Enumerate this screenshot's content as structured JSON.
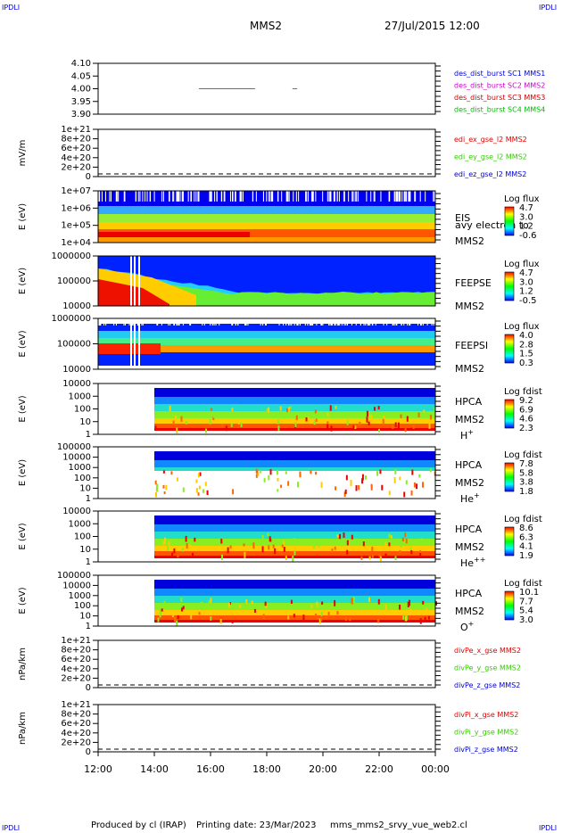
{
  "corner_labels": {
    "top_left": "IPDLI",
    "top_right": "IPDLI",
    "bottom_left": "IPDLI",
    "bottom_right": "IPDLI"
  },
  "header": {
    "spacecraft": "MMS2",
    "datetime": "27/Jul/2015 12:00"
  },
  "footer": {
    "produced_by": "Produced by cl (IRAP)",
    "printing_date": "Printing date: 23/Mar/2023",
    "file": "mms_mms2_srvy_vue_web2.cl"
  },
  "colors": {
    "c1": "#0000cc",
    "c2": "#cc00cc",
    "c3": "#cc0000",
    "c4": "#00bb00",
    "x": "#dd0000",
    "y": "#33cc00",
    "z": "#0000cc"
  },
  "chart_data": {
    "type": "heatmap",
    "x_axis": {
      "ticks": [
        "12:00",
        "14:00",
        "16:00",
        "18:00",
        "20:00",
        "22:00",
        "00:00"
      ]
    },
    "panels": [
      {
        "id": "p1",
        "type": "line",
        "yticks": [
          "4.10",
          "4.05",
          "4.00",
          "3.95",
          "3.90"
        ],
        "ylim": [
          3.9,
          4.1
        ],
        "legend": [
          {
            "text": "des_dist_burst SC1 MMS1",
            "color": "#0000cc"
          },
          {
            "text": "des_dist_burst SC2 MMS2",
            "color": "#cc00cc"
          },
          {
            "text": "des_dist_burst SC3 MMS3",
            "color": "#cc0000"
          },
          {
            "text": "des_dist_burst SC4 MMS4",
            "color": "#00bb00"
          }
        ],
        "segments": [
          {
            "from": "15:35",
            "to": "17:35",
            "y": 4.0,
            "series": 4
          },
          {
            "from": "18:55",
            "to": "19:05",
            "y": 4.0,
            "series": 4
          }
        ]
      },
      {
        "id": "p2",
        "type": "line",
        "ylabel": "mV/m",
        "yticks": [
          "1e+21",
          "8e+20",
          "6e+20",
          "4e+20",
          "2e+20",
          "0"
        ],
        "legend": [
          {
            "text": "edi_ex_gse_l2 MMS2",
            "color": "#dd0000"
          },
          {
            "text": "edi_ey_gse_l2 MMS2",
            "color": "#33cc00"
          },
          {
            "text": "edi_ez_gse_l2 MMS2",
            "color": "#0000cc"
          }
        ]
      },
      {
        "id": "p3",
        "type": "heatmap",
        "ylabel": "E (eV)",
        "yticks": [
          "1e+07",
          "1e+06",
          "1e+05",
          "1e+04"
        ],
        "instrument": "EIS",
        "overflow_label": "avy electron to",
        "sc": "MMS2",
        "cbar_title": "Log flux",
        "cbar_ticks": [
          "4.7",
          "3.0",
          "1.2",
          "-0.6"
        ]
      },
      {
        "id": "p4",
        "type": "heatmap",
        "ylabel": "E (eV)",
        "yticks": [
          "1000000",
          "100000",
          "10000"
        ],
        "instrument": "FEEPSE",
        "sc": "MMS2",
        "cbar_title": "Log flux",
        "cbar_ticks": [
          "4.7",
          "3.0",
          "1.2",
          "-0.5"
        ]
      },
      {
        "id": "p5",
        "type": "heatmap",
        "ylabel": "E (eV)",
        "yticks": [
          "1000000",
          "100000",
          "10000"
        ],
        "instrument": "FEEPSI",
        "sc": "MMS2",
        "cbar_title": "Log flux",
        "cbar_ticks": [
          "4.0",
          "2.8",
          "1.5",
          "0.3"
        ]
      },
      {
        "id": "p6",
        "type": "heatmap",
        "ylabel": "E (eV)",
        "yticks": [
          "10000",
          "1000",
          "100",
          "10",
          "1"
        ],
        "instrument": "HPCA",
        "sc": "MMS2",
        "species": "H",
        "charge": "+",
        "cbar_title": "Log fdist",
        "cbar_ticks": [
          "9.2",
          "6.9",
          "4.6",
          "2.3"
        ]
      },
      {
        "id": "p7",
        "type": "heatmap",
        "ylabel": "E (eV)",
        "yticks": [
          "100000",
          "10000",
          "1000",
          "100",
          "10",
          "1"
        ],
        "instrument": "HPCA",
        "sc": "MMS2",
        "species": "He",
        "charge": "+",
        "cbar_title": "Log fdist",
        "cbar_ticks": [
          "7.8",
          "5.8",
          "3.8",
          "1.8"
        ]
      },
      {
        "id": "p8",
        "type": "heatmap",
        "ylabel": "E (eV)",
        "yticks": [
          "10000",
          "1000",
          "100",
          "10",
          "1"
        ],
        "instrument": "HPCA",
        "sc": "MMS2",
        "species": "He",
        "charge": "++",
        "cbar_title": "Log fdist",
        "cbar_ticks": [
          "8.6",
          "6.3",
          "4.1",
          "1.9"
        ]
      },
      {
        "id": "p9",
        "type": "heatmap",
        "ylabel": "E (eV)",
        "yticks": [
          "100000",
          "10000",
          "1000",
          "100",
          "10",
          "1"
        ],
        "instrument": "HPCA",
        "sc": "MMS2",
        "species": "O",
        "charge": "+",
        "cbar_title": "Log fdist",
        "cbar_ticks": [
          "10.1",
          "7.7",
          "5.4",
          "3.0"
        ]
      },
      {
        "id": "p10",
        "type": "line",
        "ylabel": "nPa/km",
        "yticks": [
          "1e+21",
          "8e+20",
          "6e+20",
          "4e+20",
          "2e+20",
          "0"
        ],
        "legend": [
          {
            "text": "divPe_x_gse MMS2",
            "color": "#dd0000"
          },
          {
            "text": "divPe_y_gse MMS2",
            "color": "#33cc00"
          },
          {
            "text": "divPe_z_gse MMS2",
            "color": "#0000cc"
          }
        ]
      },
      {
        "id": "p11",
        "type": "line",
        "ylabel": "nPa/km",
        "yticks": [
          "1e+21",
          "8e+20",
          "6e+20",
          "4e+20",
          "2e+20",
          "0"
        ],
        "legend": [
          {
            "text": "divPi_x_gse MMS2",
            "color": "#dd0000"
          },
          {
            "text": "divPi_y_gse MMS2",
            "color": "#33cc00"
          },
          {
            "text": "divPi_z_gse MMS2",
            "color": "#0000cc"
          }
        ]
      }
    ]
  }
}
